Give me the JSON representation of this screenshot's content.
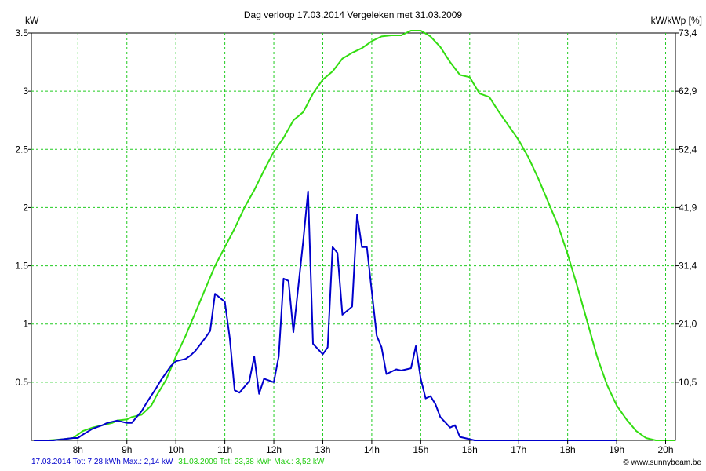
{
  "chart_data": {
    "type": "line",
    "title": "Dag  verloop 17.03.2014   Vergeleken met 31.03.2009",
    "ylabel_left": "kW",
    "ylabel_right": "kW/kWp [%]",
    "x_ticks": [
      "8h",
      "9h",
      "10h",
      "11h",
      "12h",
      "13h",
      "14h",
      "15h",
      "16h",
      "17h",
      "18h",
      "19h",
      "20h"
    ],
    "y_ticks_left": [
      "0.5",
      "1",
      "1.5",
      "2",
      "2.5",
      "3",
      "3.5"
    ],
    "y_ticks_right": [
      "10,5",
      "21,0",
      "31,4",
      "41,9",
      "52,4",
      "62,9",
      "73,4"
    ],
    "xlim": [
      7.05,
      20.2
    ],
    "ylim": [
      0,
      3.5
    ],
    "grid": true,
    "series": [
      {
        "name": "17.03.2014",
        "color": "#0000cc",
        "x": [
          7.1,
          7.3,
          7.5,
          7.7,
          7.9,
          8.0,
          8.1,
          8.3,
          8.5,
          8.6,
          8.7,
          8.8,
          9.0,
          9.1,
          9.2,
          9.3,
          9.4,
          9.6,
          9.7,
          9.8,
          9.9,
          10.0,
          10.1,
          10.2,
          10.3,
          10.4,
          10.6,
          10.7,
          10.8,
          11.0,
          11.1,
          11.2,
          11.3,
          11.5,
          11.6,
          11.7,
          11.8,
          12.0,
          12.1,
          12.2,
          12.3,
          12.4,
          12.6,
          12.7,
          12.8,
          13.0,
          13.1,
          13.2,
          13.3,
          13.4,
          13.6,
          13.7,
          13.8,
          13.9,
          14.1,
          14.2,
          14.3,
          14.4,
          14.5,
          14.6,
          14.8,
          14.9,
          15.0,
          15.1,
          15.2,
          15.3,
          15.4,
          15.6,
          15.7,
          15.8,
          16.0,
          16.1,
          16.2,
          16.3,
          16.4,
          16.6,
          16.7,
          16.8,
          16.9,
          17.0,
          17.1,
          17.3,
          17.4,
          17.5,
          17.7,
          17.8,
          18.0,
          18.2,
          18.5,
          18.8,
          19.0
        ],
        "y": [
          0,
          0,
          0,
          0.01,
          0.02,
          0.02,
          0.05,
          0.1,
          0.13,
          0.15,
          0.16,
          0.17,
          0.15,
          0.15,
          0.2,
          0.25,
          0.32,
          0.45,
          0.52,
          0.58,
          0.64,
          0.68,
          0.69,
          0.7,
          0.73,
          0.77,
          0.88,
          0.94,
          1.26,
          1.19,
          0.88,
          0.43,
          0.41,
          0.51,
          0.72,
          0.4,
          0.53,
          0.5,
          0.72,
          1.39,
          1.37,
          0.93,
          1.71,
          2.14,
          0.83,
          0.74,
          0.8,
          1.66,
          1.61,
          1.08,
          1.15,
          1.94,
          1.66,
          1.66,
          0.9,
          0.8,
          0.57,
          0.59,
          0.61,
          0.6,
          0.62,
          0.81,
          0.53,
          0.36,
          0.38,
          0.31,
          0.2,
          0.11,
          0.13,
          0.03,
          0.01,
          0,
          0,
          0,
          0,
          0,
          0,
          0,
          0,
          0,
          0,
          0,
          0,
          0,
          0,
          0,
          0,
          0,
          0,
          0,
          0
        ],
        "tot": "Tot: 7,28 kWh",
        "max": "Max.: 2,14 kW"
      },
      {
        "name": "31.03.2009",
        "color": "#33dd11",
        "x": [
          7.1,
          7.4,
          7.7,
          7.9,
          8.0,
          8.1,
          8.3,
          8.5,
          8.7,
          8.8,
          9.0,
          9.1,
          9.3,
          9.5,
          9.6,
          9.8,
          10.0,
          10.2,
          10.4,
          10.6,
          10.8,
          11.0,
          11.2,
          11.4,
          11.6,
          11.8,
          12.0,
          12.2,
          12.4,
          12.6,
          12.8,
          13.0,
          13.2,
          13.4,
          13.6,
          13.8,
          14.0,
          14.2,
          14.4,
          14.6,
          14.8,
          15.0,
          15.2,
          15.4,
          15.6,
          15.8,
          16.0,
          16.2,
          16.4,
          16.6,
          16.8,
          17.0,
          17.2,
          17.4,
          17.6,
          17.8,
          18.0,
          18.2,
          18.4,
          18.6,
          18.8,
          19.0,
          19.2,
          19.4,
          19.6,
          19.8,
          20.0,
          20.2
        ],
        "y": [
          0,
          0,
          0.01,
          0.02,
          0.05,
          0.08,
          0.11,
          0.13,
          0.15,
          0.17,
          0.18,
          0.2,
          0.22,
          0.3,
          0.38,
          0.52,
          0.72,
          0.9,
          1.1,
          1.3,
          1.5,
          1.66,
          1.82,
          2.0,
          2.15,
          2.32,
          2.48,
          2.6,
          2.75,
          2.82,
          2.98,
          3.1,
          3.17,
          3.28,
          3.33,
          3.37,
          3.43,
          3.47,
          3.48,
          3.48,
          3.52,
          3.52,
          3.47,
          3.38,
          3.25,
          3.14,
          3.12,
          2.98,
          2.95,
          2.82,
          2.7,
          2.58,
          2.43,
          2.25,
          2.05,
          1.85,
          1.6,
          1.32,
          1.02,
          0.72,
          0.48,
          0.3,
          0.18,
          0.08,
          0.02,
          0,
          0,
          0
        ],
        "tot": "Tot: 23,38 kWh",
        "max": "Max.: 3,52 kW"
      }
    ]
  },
  "footer": {
    "left_blue": "17.03.2014 Tot: 7,28 kWh Max.: 2,14 kW",
    "left_green": "31.03.2009 Tot: 23,38 kWh Max.: 3,52 kW",
    "credit": "© www.sunnybeam.be"
  }
}
